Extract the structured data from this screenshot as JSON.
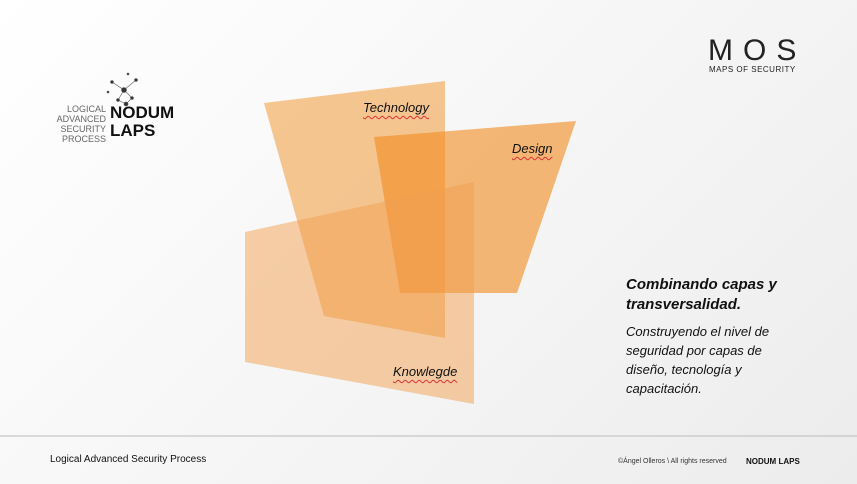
{
  "logo": {
    "left_text": "LOGICAL ADVANCED SECURITY PROCESS",
    "brand": "NODUM LAPS"
  },
  "partner_logo": {
    "mark": "MOS",
    "subtitle": "MAPS OF SECURITY"
  },
  "layers": [
    "Technology",
    "Design",
    "Knowlegde"
  ],
  "heading": "Combinando capas y transversalidad.",
  "body": "Construyendo el nivel de seguridad por capas de diseño, tecnología y capacitación.",
  "footer": {
    "left": "Logical Advanced Security Process",
    "copyright": "©Ángel Olleros \\ All rights reserved",
    "brand": "NODUM LAPS"
  }
}
